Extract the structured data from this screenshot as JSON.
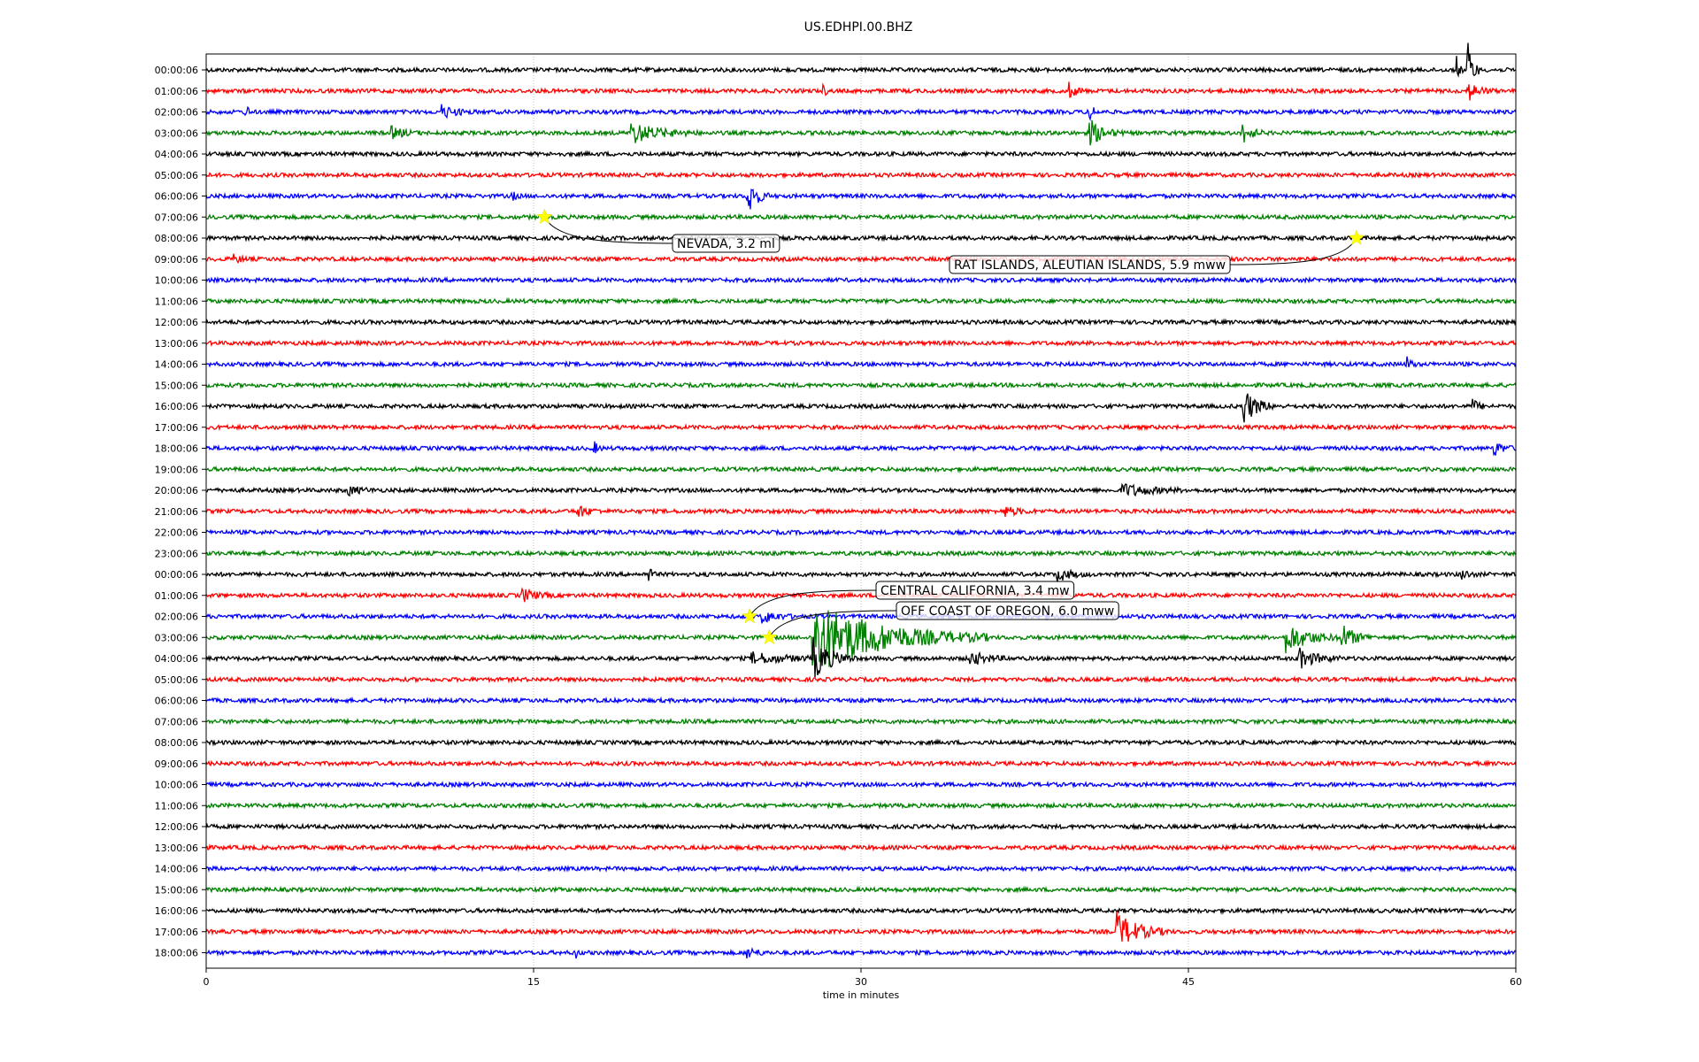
{
  "chart_data": {
    "type": "line",
    "title": "US.EDHPI.00.BHZ",
    "xlabel": "time in minutes",
    "ylabel": "",
    "xlim": [
      0,
      60
    ],
    "x_ticks": [
      0,
      15,
      30,
      45,
      60
    ],
    "x_tick_labels": [
      "0",
      "15",
      "30",
      "45",
      "60"
    ],
    "grid": "vertical",
    "line_colors": [
      "#000000",
      "#ff0000",
      "#0000ff",
      "#008000"
    ],
    "rows": [
      {
        "label": "00:00:06",
        "color": "#000000"
      },
      {
        "label": "01:00:06",
        "color": "#ff0000"
      },
      {
        "label": "02:00:06",
        "color": "#0000ff"
      },
      {
        "label": "03:00:06",
        "color": "#008000"
      },
      {
        "label": "04:00:06",
        "color": "#000000"
      },
      {
        "label": "05:00:06",
        "color": "#ff0000"
      },
      {
        "label": "06:00:06",
        "color": "#0000ff"
      },
      {
        "label": "07:00:06",
        "color": "#008000"
      },
      {
        "label": "08:00:06",
        "color": "#000000"
      },
      {
        "label": "09:00:06",
        "color": "#ff0000"
      },
      {
        "label": "10:00:06",
        "color": "#0000ff"
      },
      {
        "label": "11:00:06",
        "color": "#008000"
      },
      {
        "label": "12:00:06",
        "color": "#000000"
      },
      {
        "label": "13:00:06",
        "color": "#ff0000"
      },
      {
        "label": "14:00:06",
        "color": "#0000ff"
      },
      {
        "label": "15:00:06",
        "color": "#008000"
      },
      {
        "label": "16:00:06",
        "color": "#000000"
      },
      {
        "label": "17:00:06",
        "color": "#ff0000"
      },
      {
        "label": "18:00:06",
        "color": "#0000ff"
      },
      {
        "label": "19:00:06",
        "color": "#008000"
      },
      {
        "label": "20:00:06",
        "color": "#000000"
      },
      {
        "label": "21:00:06",
        "color": "#ff0000"
      },
      {
        "label": "22:00:06",
        "color": "#0000ff"
      },
      {
        "label": "23:00:06",
        "color": "#008000"
      },
      {
        "label": "00:00:06",
        "color": "#000000"
      },
      {
        "label": "01:00:06",
        "color": "#ff0000"
      },
      {
        "label": "02:00:06",
        "color": "#0000ff"
      },
      {
        "label": "03:00:06",
        "color": "#008000"
      },
      {
        "label": "04:00:06",
        "color": "#000000"
      },
      {
        "label": "05:00:06",
        "color": "#ff0000"
      },
      {
        "label": "06:00:06",
        "color": "#0000ff"
      },
      {
        "label": "07:00:06",
        "color": "#008000"
      },
      {
        "label": "08:00:06",
        "color": "#000000"
      },
      {
        "label": "09:00:06",
        "color": "#ff0000"
      },
      {
        "label": "10:00:06",
        "color": "#0000ff"
      },
      {
        "label": "11:00:06",
        "color": "#008000"
      },
      {
        "label": "12:00:06",
        "color": "#000000"
      },
      {
        "label": "13:00:06",
        "color": "#ff0000"
      },
      {
        "label": "14:00:06",
        "color": "#0000ff"
      },
      {
        "label": "15:00:06",
        "color": "#008000"
      },
      {
        "label": "16:00:06",
        "color": "#000000"
      },
      {
        "label": "17:00:06",
        "color": "#ff0000"
      },
      {
        "label": "18:00:06",
        "color": "#0000ff"
      }
    ],
    "bursts": [
      {
        "row": 0,
        "t": 57.8,
        "amp": 2.6,
        "dur": 0.6
      },
      {
        "row": 0,
        "t": 57.3,
        "amp": 1.2,
        "dur": 0.3
      },
      {
        "row": 1,
        "t": 39.5,
        "amp": 0.8,
        "dur": 0.8
      },
      {
        "row": 1,
        "t": 28.3,
        "amp": 0.5,
        "dur": 0.3
      },
      {
        "row": 1,
        "t": 57.8,
        "amp": 0.9,
        "dur": 1.2
      },
      {
        "row": 2,
        "t": 1.8,
        "amp": 1.0,
        "dur": 0.3
      },
      {
        "row": 2,
        "t": 10.8,
        "amp": 0.6,
        "dur": 1.5
      },
      {
        "row": 2,
        "t": 40.5,
        "amp": 1.0,
        "dur": 0.4
      },
      {
        "row": 3,
        "t": 19.5,
        "amp": 1.0,
        "dur": 3.0
      },
      {
        "row": 3,
        "t": 40.5,
        "amp": 1.2,
        "dur": 1.5
      },
      {
        "row": 3,
        "t": 47.5,
        "amp": 1.0,
        "dur": 1.0
      },
      {
        "row": 3,
        "t": 8.5,
        "amp": 0.5,
        "dur": 1.5
      },
      {
        "row": 6,
        "t": 24.8,
        "amp": 2.0,
        "dur": 1.0
      },
      {
        "row": 6,
        "t": 14.0,
        "amp": 0.4,
        "dur": 0.5
      },
      {
        "row": 9,
        "t": 1.2,
        "amp": 0.4,
        "dur": 1.0
      },
      {
        "row": 14,
        "t": 55.0,
        "amp": 0.7,
        "dur": 0.5
      },
      {
        "row": 16,
        "t": 47.5,
        "amp": 1.8,
        "dur": 1.5
      },
      {
        "row": 16,
        "t": 58.0,
        "amp": 0.6,
        "dur": 0.8
      },
      {
        "row": 18,
        "t": 59.0,
        "amp": 0.7,
        "dur": 1.0
      },
      {
        "row": 18,
        "t": 17.8,
        "amp": 0.5,
        "dur": 0.4
      },
      {
        "row": 20,
        "t": 42.0,
        "amp": 0.6,
        "dur": 3.0
      },
      {
        "row": 20,
        "t": 6.5,
        "amp": 0.4,
        "dur": 1.5
      },
      {
        "row": 21,
        "t": 17.0,
        "amp": 0.6,
        "dur": 1.2
      },
      {
        "row": 21,
        "t": 36.5,
        "amp": 0.5,
        "dur": 1.5
      },
      {
        "row": 24,
        "t": 20.3,
        "amp": 0.8,
        "dur": 0.3
      },
      {
        "row": 24,
        "t": 39.0,
        "amp": 0.6,
        "dur": 1.5
      },
      {
        "row": 24,
        "t": 57.5,
        "amp": 0.5,
        "dur": 0.8
      },
      {
        "row": 25,
        "t": 14.5,
        "amp": 0.6,
        "dur": 1.5
      },
      {
        "row": 26,
        "t": 25.5,
        "amp": 0.6,
        "dur": 1.5
      },
      {
        "row": 27,
        "t": 27.8,
        "amp": 3.5,
        "dur": 8.0
      },
      {
        "row": 27,
        "t": 49.5,
        "amp": 1.4,
        "dur": 2.5
      },
      {
        "row": 27,
        "t": 52.0,
        "amp": 1.3,
        "dur": 1.5
      },
      {
        "row": 28,
        "t": 27.8,
        "amp": 2.0,
        "dur": 2.0
      },
      {
        "row": 28,
        "t": 25.0,
        "amp": 0.5,
        "dur": 4.0
      },
      {
        "row": 28,
        "t": 35.0,
        "amp": 0.6,
        "dur": 2.0
      },
      {
        "row": 28,
        "t": 50.0,
        "amp": 1.0,
        "dur": 2.0
      },
      {
        "row": 41,
        "t": 41.7,
        "amp": 1.8,
        "dur": 2.5
      },
      {
        "row": 42,
        "t": 24.8,
        "amp": 0.5,
        "dur": 1.0
      },
      {
        "row": 42,
        "t": 16.9,
        "amp": 0.6,
        "dur": 0.3
      }
    ],
    "annotations": [
      {
        "text": "NEVADA, 3.2 ml",
        "row": 7,
        "t": 15.5
      },
      {
        "text": "RAT ISLANDS, ALEUTIAN ISLANDS, 5.9 mww",
        "row": 8,
        "t": 52.7
      },
      {
        "text": "CENTRAL CALIFORNIA, 3.4 mw",
        "row": 26,
        "t": 24.9
      },
      {
        "text": "OFF COAST OF OREGON, 6.0 mww",
        "row": 27,
        "t": 25.8
      }
    ]
  }
}
